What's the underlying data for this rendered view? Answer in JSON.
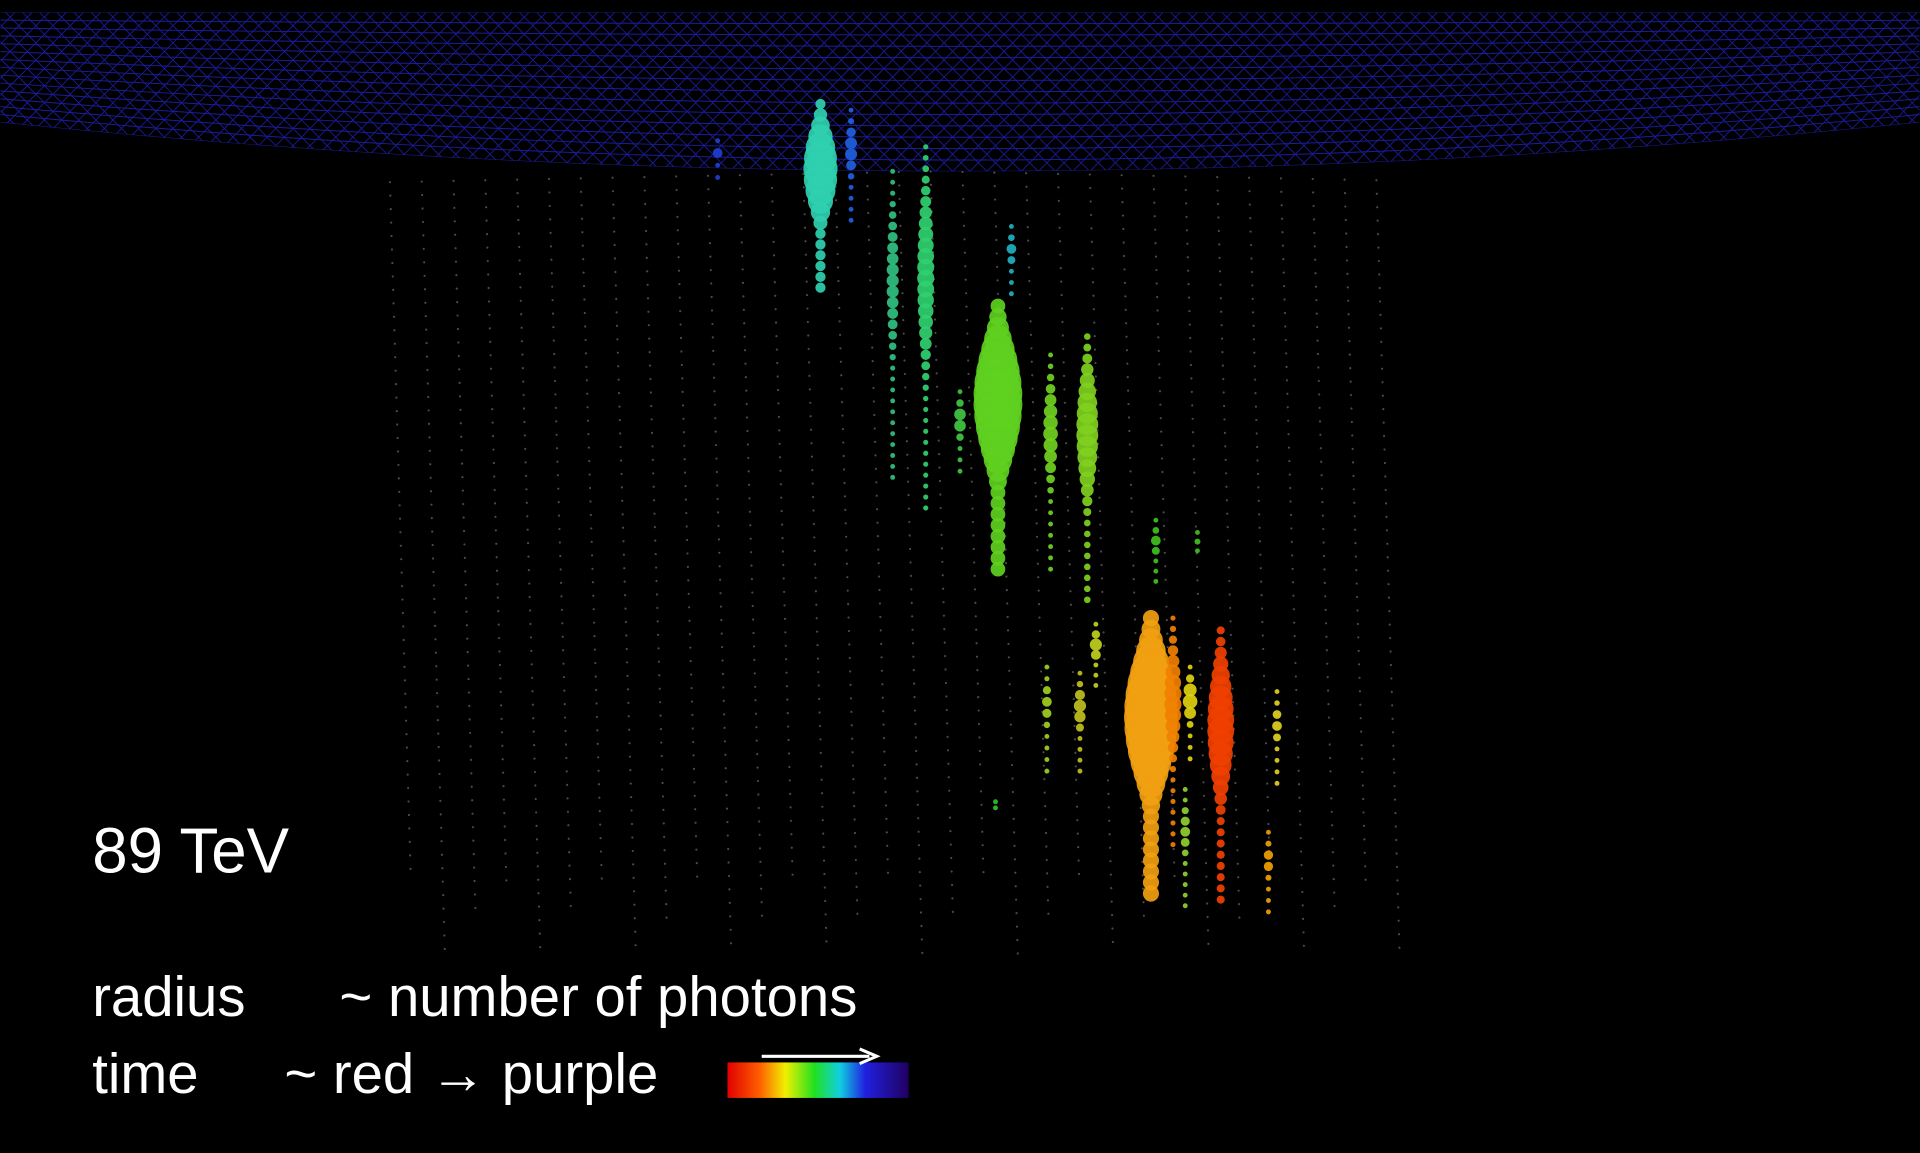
{
  "annotations": {
    "energy": "89 TeV",
    "legend": [
      {
        "label": "radius",
        "description": "~ number of photons"
      },
      {
        "label": "time",
        "description": "~ red → purple"
      }
    ]
  }
}
